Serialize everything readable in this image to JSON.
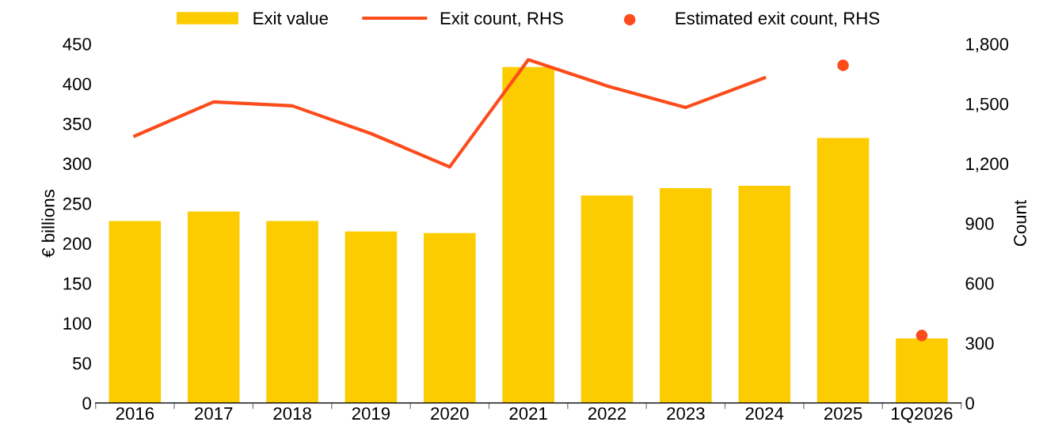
{
  "chart_data": {
    "type": "bar",
    "ylabel": "€ billions",
    "y2label": "Count",
    "categories": [
      "2016",
      "2017",
      "2018",
      "2019",
      "2020",
      "2021",
      "2022",
      "2023",
      "2024",
      "2025",
      "1Q2026"
    ],
    "series": [
      {
        "name": "Exit value",
        "color": "#fccc00",
        "values": [
          228,
          240,
          228,
          215,
          213,
          421,
          260,
          269,
          272,
          332,
          81
        ]
      },
      {
        "name": "Exit count, RHS",
        "type": "line",
        "axis": "y2",
        "marker": "none",
        "color": "#fc4c1c",
        "values": [
          1338,
          1509,
          1489,
          1350,
          1183,
          1720,
          1589,
          1481,
          1629,
          null,
          null
        ]
      },
      {
        "name": "Estimated exit count, RHS",
        "type": "scatter",
        "axis": "y2",
        "marker": "circle",
        "color": "#fc4c1c",
        "values": [
          null,
          null,
          null,
          null,
          null,
          null,
          null,
          null,
          null,
          1692,
          338
        ]
      }
    ],
    "ylim": [
      0,
      450
    ],
    "yticks": [
      0,
      50,
      100,
      150,
      200,
      250,
      300,
      350,
      400,
      450
    ],
    "y2lim": [
      0,
      1800
    ],
    "y2ticks": [
      {
        "value": 0,
        "label": "0"
      },
      {
        "value": 300,
        "label": "300"
      },
      {
        "value": 600,
        "label": "600"
      },
      {
        "value": 900,
        "label": "900"
      },
      {
        "value": 1200,
        "label": "1,200"
      },
      {
        "value": 1500,
        "label": "1,500"
      },
      {
        "value": 1800,
        "label": "1,800"
      }
    ],
    "legend": "top",
    "grid": false,
    "line_style": "solid"
  }
}
